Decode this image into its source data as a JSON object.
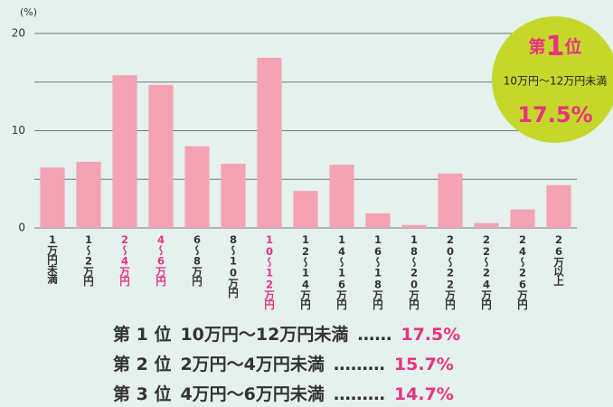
{
  "chart_data": {
    "type": "bar",
    "y_label": "(%)",
    "categories": [
      "1万円未満",
      "1～2万円",
      "2～4万円",
      "4～6万円",
      "6～8万円",
      "8～10万円",
      "10～12万円",
      "12～14万円",
      "14～16万円",
      "16～18万円",
      "18～20万円",
      "20～22万円",
      "22～24万円",
      "24～26万円",
      "26万以上"
    ],
    "values": [
      6.2,
      6.8,
      15.7,
      14.7,
      8.4,
      6.6,
      17.5,
      3.8,
      6.5,
      1.5,
      0.3,
      5.6,
      0.5,
      1.9,
      4.4
    ],
    "color": "#f4a3b4",
    "label_color": "#333333",
    "highlight": [
      2,
      3,
      6
    ],
    "highlight_color": "#e8337f",
    "ylim": [
      0,
      20
    ],
    "yticks": [
      0,
      10,
      20
    ],
    "minor_yticks": [
      5,
      15
    ],
    "grid": true
  },
  "badge": {
    "prefix": "第",
    "number": "1",
    "suffix": "位",
    "label": "10万円～12万円未満",
    "value": "17.5%"
  },
  "ranking": [
    {
      "rank": "第 1 位",
      "label": "10万円～12万円未満",
      "dots": "……",
      "value": "17.5%"
    },
    {
      "rank": "第 2 位",
      "label": "2万円～4万円未満",
      "dots": "………",
      "value": "15.7%"
    },
    {
      "rank": "第 3 位",
      "label": "4万円～6万円未満",
      "dots": "………",
      "value": "14.7%"
    }
  ]
}
